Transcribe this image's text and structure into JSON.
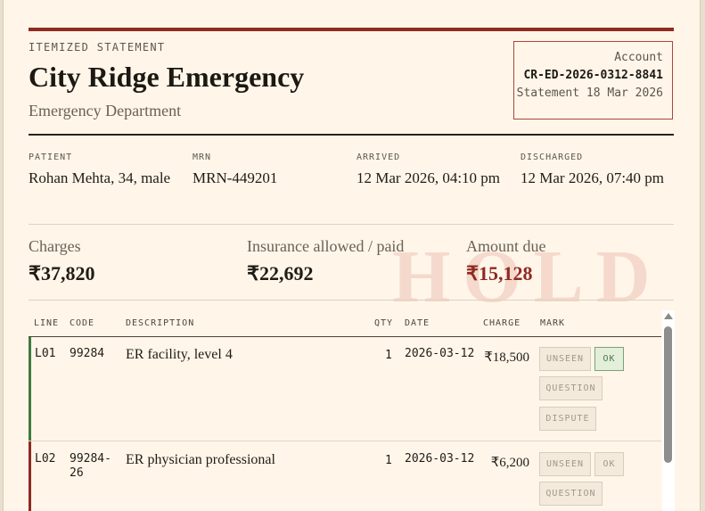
{
  "header": {
    "eyebrow": "ITEMIZED STATEMENT",
    "title": "City Ridge Emergency",
    "department": "Emergency Department"
  },
  "account": {
    "label": "Account",
    "number": "CR-ED-2026-0312-8841",
    "statement": "Statement 18 Mar 2026"
  },
  "patient": {
    "patient_label": "PATIENT",
    "patient_value": "Rohan Mehta, 34, male",
    "mrn_label": "MRN",
    "mrn_value": "MRN-449201",
    "arrived_label": "ARRIVED",
    "arrived_value": "12 Mar 2026, 04:10 pm",
    "discharged_label": "DISCHARGED",
    "discharged_value": "12 Mar 2026, 07:40 pm"
  },
  "summary": {
    "charges_label": "Charges",
    "charges_value": "₹37,820",
    "insurance_label": "Insurance allowed / paid",
    "insurance_value": "₹22,692",
    "due_label": "Amount due",
    "due_value": "₹15,128",
    "watermark": "HOLD"
  },
  "table": {
    "headers": [
      "LINE",
      "CODE",
      "DESCRIPTION",
      "QTY",
      "DATE",
      "CHARGE",
      "MARK"
    ],
    "mark_labels": {
      "unseen": "UNSEEN",
      "ok": "OK",
      "question": "QUESTION",
      "dispute": "DISPUTE"
    },
    "rows": [
      {
        "line": "L01",
        "code": "99284",
        "description": "ER facility, level 4",
        "qty": "1",
        "date": "2026-03-12",
        "charge": "₹18,500",
        "mark": "ok",
        "status_color": "#3d7a3f"
      },
      {
        "line": "L02",
        "code": "99284-26",
        "description": "ER physician professional",
        "qty": "1",
        "date": "2026-03-12",
        "charge": "₹6,200",
        "mark": "none",
        "status_color": "#8e2a22"
      }
    ]
  },
  "colors": {
    "accent": "#8e2a22",
    "ok": "#3d7a3f",
    "background": "#fff6e9"
  }
}
